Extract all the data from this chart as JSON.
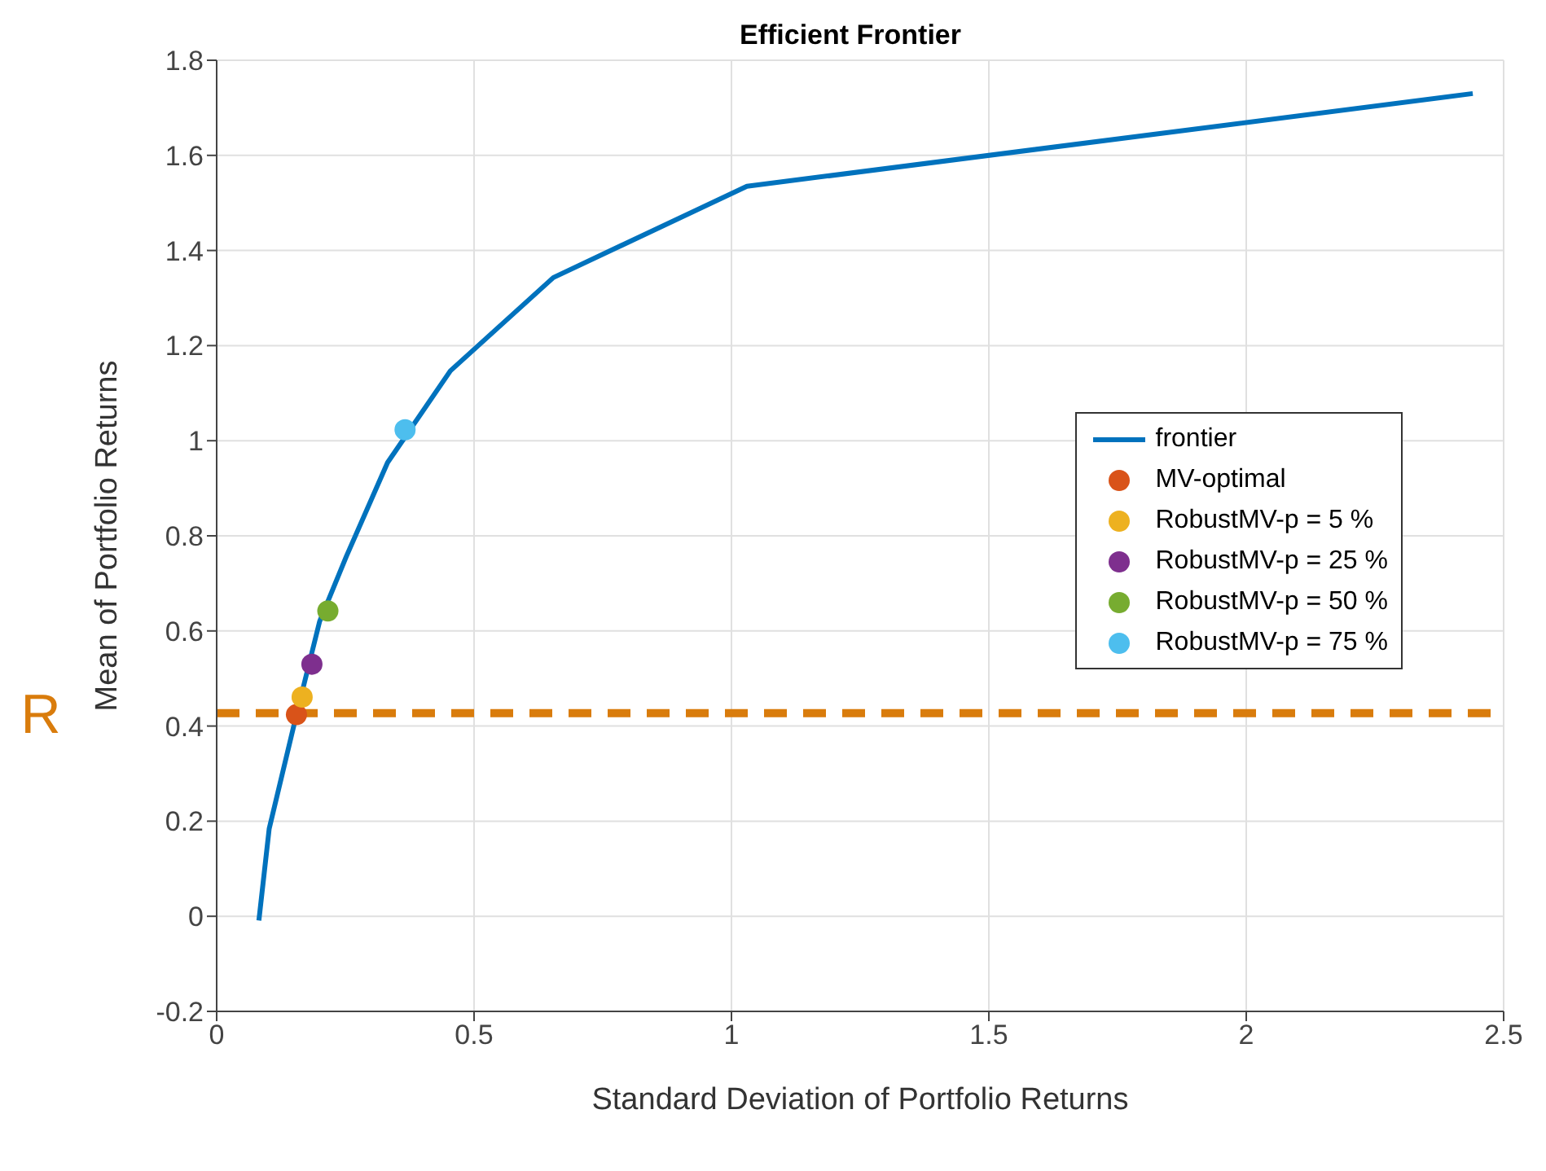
{
  "chart_data": {
    "type": "line",
    "title": "Efficient Frontier",
    "xlabel": "Standard Deviation of Portfolio Returns",
    "ylabel": "Mean of Portfolio Returns",
    "xlim": [
      0,
      2.5
    ],
    "xticks": [
      0,
      0.5,
      1,
      1.5,
      2,
      2.5
    ],
    "ylim": [
      -0.2,
      1.8
    ],
    "yticks": [
      -0.2,
      0,
      0.2,
      0.4,
      0.6,
      0.8,
      1,
      1.2,
      1.4,
      1.6,
      1.8
    ],
    "grid": true,
    "legend": "right",
    "series": [
      {
        "name": "frontier",
        "color": "#0072bd",
        "marker": "none",
        "x": [
          0.082,
          0.102,
          0.155,
          0.2,
          0.252,
          0.332,
          0.454,
          0.654,
          1.03,
          2.44
        ],
        "values": [
          -0.009,
          0.184,
          0.424,
          0.62,
          0.757,
          0.954,
          1.147,
          1.343,
          1.535,
          1.73
        ]
      },
      {
        "name": "MV-optimal",
        "type": "scatter",
        "color": "#d95319",
        "marker": "circle",
        "x": [
          0.155
        ],
        "values": [
          0.424
        ]
      },
      {
        "name": "RobustMV-p = 5 %",
        "type": "scatter",
        "color": "#edb120",
        "marker": "circle",
        "x": [
          0.166
        ],
        "values": [
          0.461
        ]
      },
      {
        "name": "RobustMV-p = 25 %",
        "type": "scatter",
        "color": "#7e2f8e",
        "marker": "circle",
        "x": [
          0.185
        ],
        "values": [
          0.53
        ]
      },
      {
        "name": "RobustMV-p = 50 %",
        "type": "scatter",
        "color": "#77ac30",
        "marker": "circle",
        "x": [
          0.216
        ],
        "values": [
          0.642
        ]
      },
      {
        "name": "RobustMV-p = 75 %",
        "type": "scatter",
        "color": "#4dbeee",
        "marker": "circle",
        "x": [
          0.366
        ],
        "values": [
          1.023
        ]
      }
    ],
    "ref_lines": [
      {
        "axis": "y",
        "value": 0.427,
        "label": "R",
        "color": "#d97c0c",
        "line_style": "dashed"
      }
    ]
  }
}
